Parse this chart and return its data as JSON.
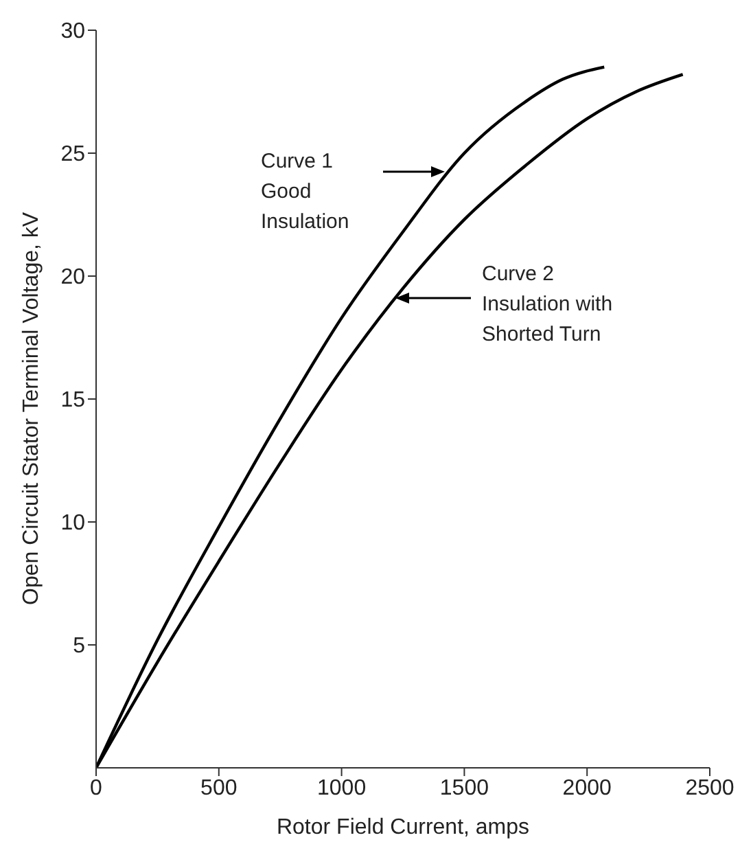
{
  "chart_data": {
    "type": "line",
    "xlabel": "Rotor Field Current, amps",
    "ylabel": "Open Circuit Stator Terminal Voltage, kV",
    "xlim": [
      0,
      2500
    ],
    "xticks": [
      0,
      500,
      1000,
      1500,
      2000,
      2500
    ],
    "ylim": [
      0,
      30
    ],
    "yticks": [
      5,
      10,
      15,
      20,
      25,
      30
    ],
    "grid": false,
    "legend": false,
    "marker": "none",
    "line_style": "solid",
    "series": [
      {
        "color": "#000000",
        "x": [
          0,
          250,
          500,
          750,
          1000,
          1250,
          1500,
          1750,
          1900,
          2070
        ],
        "values": [
          0,
          5.2,
          9.8,
          14.2,
          18.3,
          21.8,
          25.0,
          27.1,
          28.0,
          28.5
        ]
      },
      {
        "color": "#000000",
        "x": [
          0,
          250,
          500,
          750,
          1000,
          1250,
          1500,
          1750,
          2000,
          2200,
          2390
        ],
        "values": [
          0,
          4.3,
          8.4,
          12.4,
          16.2,
          19.5,
          22.3,
          24.5,
          26.4,
          27.5,
          28.2
        ]
      }
    ],
    "annotations": [
      "Curve 1\nGood\nInsulation",
      "Curve 2\nInsulation with\nShorted Turn"
    ]
  }
}
